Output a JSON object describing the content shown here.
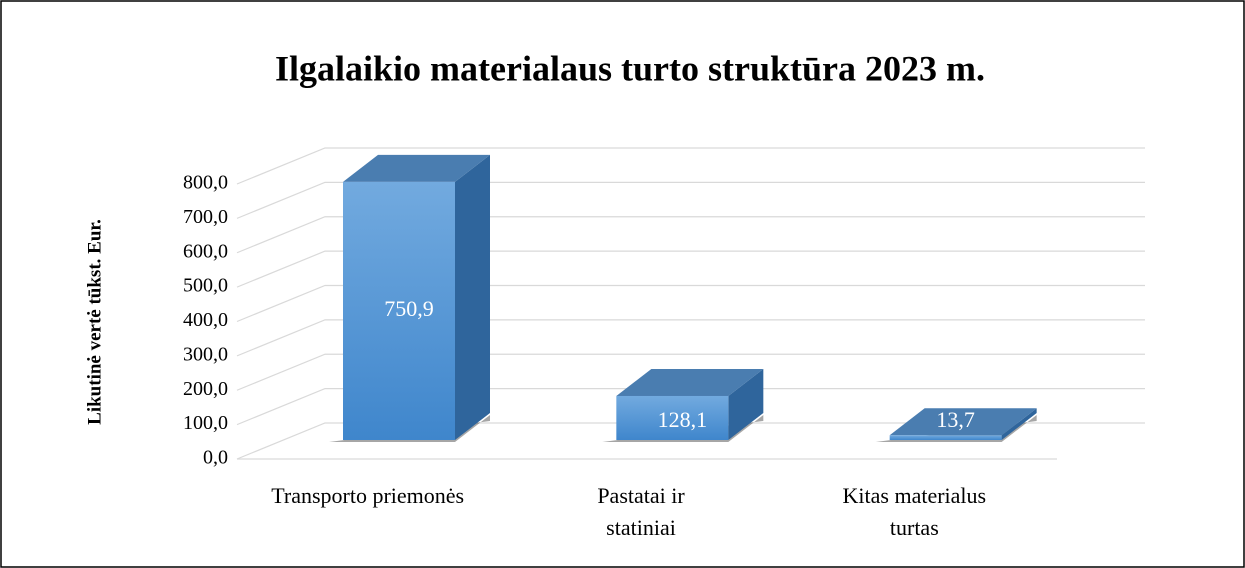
{
  "chart_data": {
    "type": "bar3d",
    "title": "Ilgalaikio materialaus turto struktūra 2023 m.",
    "y_axis_label": "Likutinė vertė tūkst. Eur.",
    "categories": [
      "Transporto priemonės",
      "Pastatai ir statiniai",
      "Kitas materialus turtas"
    ],
    "values": [
      750.9,
      128.1,
      13.7
    ],
    "value_labels": [
      "750,9",
      "128,1",
      "13,7"
    ],
    "color": "#5b9bd5",
    "ylim": [
      0,
      800
    ],
    "yticks": [
      {
        "value": 0,
        "label": "0,0"
      },
      {
        "value": 100,
        "label": "100,0"
      },
      {
        "value": 200,
        "label": "200,0"
      },
      {
        "value": 300,
        "label": "300,0"
      },
      {
        "value": 400,
        "label": "400,0"
      },
      {
        "value": 500,
        "label": "500,0"
      },
      {
        "value": 600,
        "label": "600,0"
      },
      {
        "value": 700,
        "label": "700,0"
      },
      {
        "value": 800,
        "label": "800,0"
      }
    ],
    "grid": true
  }
}
